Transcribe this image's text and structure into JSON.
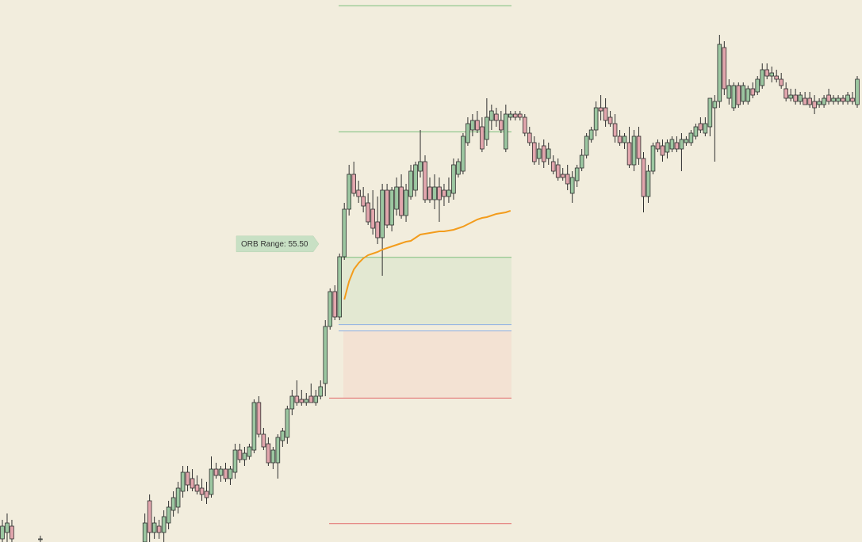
{
  "chart_data": {
    "type": "candlestick",
    "xlim": [
      -0.5,
      181
    ],
    "ylim": [
      20986.25,
      21200
    ],
    "up_color": "#9cc7a1",
    "down_color": "#e2a6ad",
    "outline_color": "#2f2f2f",
    "x": [
      0,
      1,
      2,
      8,
      30,
      31,
      32,
      33,
      34,
      35,
      36,
      37,
      38,
      39,
      40,
      41,
      42,
      43,
      44,
      45,
      46,
      47,
      48,
      49,
      50,
      51,
      52,
      53,
      54,
      55,
      56,
      57,
      58,
      59,
      60,
      61,
      62,
      63,
      64,
      65,
      66,
      67,
      68,
      69,
      70,
      71,
      72,
      73,
      74,
      75,
      76,
      77,
      78,
      79,
      80,
      81,
      82,
      83,
      84,
      85,
      86,
      87,
      88,
      89,
      90,
      91,
      92,
      93,
      94,
      95,
      96,
      97,
      98,
      99,
      100,
      101,
      102,
      103,
      104,
      105,
      106,
      107,
      108,
      109,
      110,
      111,
      112,
      113,
      114,
      115,
      116,
      117,
      118,
      119,
      120,
      121,
      122,
      123,
      124,
      125,
      126,
      127,
      128,
      129,
      130,
      131,
      132,
      133,
      134,
      135,
      136,
      137,
      138,
      139,
      140,
      141,
      142,
      143,
      144,
      145,
      146,
      147,
      148,
      149,
      150,
      151,
      152,
      153,
      154,
      155,
      156,
      157,
      158,
      159,
      160,
      161,
      162,
      163,
      164,
      165,
      166,
      167,
      168,
      169,
      170,
      171,
      172,
      173,
      174,
      175,
      176,
      177,
      178,
      179,
      180
    ],
    "ohlc": [
      [
        20987.5,
        20995,
        20985,
        20992.5
      ],
      [
        20990,
        20997.5,
        20986.25,
        20993.75
      ],
      [
        20992.5,
        20995,
        20985,
        20987.5
      ],
      [
        20987.5,
        20988.75,
        20986.25,
        20987.5
      ],
      [
        20986.25,
        20997.5,
        20985,
        20993.75
      ],
      [
        21002.5,
        21005,
        20986.25,
        20990
      ],
      [
        20990,
        20996.25,
        20987.5,
        20993.75
      ],
      [
        20992.5,
        20995,
        20987.5,
        20990
      ],
      [
        20990,
        20998.75,
        20986.25,
        20996.25
      ],
      [
        20993.75,
        21002.5,
        20991.25,
        21000
      ],
      [
        20998.75,
        21006.25,
        20996.25,
        21003.75
      ],
      [
        21000,
        21010,
        20997.5,
        21007.5
      ],
      [
        21006.25,
        21016.25,
        21003.75,
        21013.75
      ],
      [
        21013.75,
        21016.25,
        21006.25,
        21008.75
      ],
      [
        21011.25,
        21015,
        21006.25,
        21007.5
      ],
      [
        21008.75,
        21012.5,
        21005,
        21006.25
      ],
      [
        21007.5,
        21011.25,
        21002.5,
        21005
      ],
      [
        21006.25,
        21010,
        21001.25,
        21003.75
      ],
      [
        21005,
        21020,
        21003.75,
        21015
      ],
      [
        21015,
        21017.5,
        21011.25,
        21012.5
      ],
      [
        21012.5,
        21016.25,
        21010,
        21015
      ],
      [
        21015,
        21017.5,
        21010,
        21011.25
      ],
      [
        21011.25,
        21016.25,
        21008.75,
        21015
      ],
      [
        21013.75,
        21025,
        21011.25,
        21022.5
      ],
      [
        21022.5,
        21025,
        21017.5,
        21018.75
      ],
      [
        21018.75,
        21023.75,
        21016.25,
        21021.25
      ],
      [
        21020,
        21025,
        21018.75,
        21023.75
      ],
      [
        21022.5,
        21042.5,
        21021.25,
        21041.25
      ],
      [
        21041.25,
        21043.75,
        21027.5,
        21028.75
      ],
      [
        21028.75,
        21031.25,
        21022.5,
        21023.75
      ],
      [
        21025,
        21027.5,
        21016.25,
        21017.5
      ],
      [
        21017.5,
        21023.75,
        21015,
        21022.5
      ],
      [
        21017.5,
        21028.75,
        21011.25,
        21027.5
      ],
      [
        21026.25,
        21031.25,
        21023.75,
        21030
      ],
      [
        21027.5,
        21040,
        21025,
        21038.75
      ],
      [
        21038.75,
        21046.25,
        21036.25,
        21043.75
      ],
      [
        21043.75,
        21050,
        21040,
        21041.25
      ],
      [
        21042.5,
        21046.25,
        21040,
        21041.25
      ],
      [
        21041.25,
        21045,
        21040,
        21042.5
      ],
      [
        21043.75,
        21048.75,
        21041.25,
        21041.25
      ],
      [
        21041.25,
        21046.25,
        21040,
        21043.75
      ],
      [
        21043.75,
        21050,
        21042.5,
        21047.5
      ],
      [
        21048.75,
        21073.75,
        21043.75,
        21071.25
      ],
      [
        21071.25,
        21086.25,
        21070,
        21085
      ],
      [
        21085,
        21087.5,
        21073.75,
        21075
      ],
      [
        21075,
        21100,
        21073.75,
        21098.75
      ],
      [
        21098.75,
        21120,
        21097.5,
        21117.5
      ],
      [
        21117.5,
        21135,
        21115,
        21131.25
      ],
      [
        21131.25,
        21136.25,
        21122.5,
        21123.75
      ],
      [
        21125,
        21128.75,
        21120,
        21122.5
      ],
      [
        21122.5,
        21126.25,
        21116.25,
        21118.75
      ],
      [
        21120,
        21123.75,
        21111.25,
        21112.5
      ],
      [
        21117.5,
        21125,
        21107.5,
        21110
      ],
      [
        21112.5,
        21122.5,
        21103.75,
        21106.25
      ],
      [
        21106.25,
        21127.5,
        21091.25,
        21125
      ],
      [
        21125,
        21127.5,
        21110,
        21111.25
      ],
      [
        21111.25,
        21126.25,
        21108.75,
        21125
      ],
      [
        21117.5,
        21130,
        21115,
        21126.25
      ],
      [
        21126.25,
        21131.25,
        21113.75,
        21115
      ],
      [
        21115,
        21127.5,
        21112.5,
        21125
      ],
      [
        21122.5,
        21135,
        21121.25,
        21132.5
      ],
      [
        21125,
        21136.25,
        21122.5,
        21135
      ],
      [
        21132.5,
        21148.75,
        21130,
        21136.25
      ],
      [
        21136.25,
        21138.75,
        21120,
        21121.25
      ],
      [
        21126.25,
        21130,
        21120,
        21121.25
      ],
      [
        21121.25,
        21131.25,
        21117.5,
        21126.25
      ],
      [
        21126.25,
        21130,
        21112.5,
        21121.25
      ],
      [
        21125,
        21127.5,
        21118.75,
        21122.5
      ],
      [
        21122.5,
        21130,
        21120,
        21125
      ],
      [
        21123.75,
        21137.5,
        21121.25,
        21135
      ],
      [
        21131.25,
        21137.5,
        21130,
        21136.25
      ],
      [
        21132.5,
        21147.5,
        21131.25,
        21146.25
      ],
      [
        21143.75,
        21153.75,
        21142.5,
        21151.25
      ],
      [
        21148.75,
        21155,
        21146.25,
        21152.5
      ],
      [
        21152.5,
        21156.25,
        21147.5,
        21148.75
      ],
      [
        21150,
        21153.75,
        21140,
        21141.25
      ],
      [
        21145,
        21161.25,
        21142.5,
        21153.75
      ],
      [
        21152.5,
        21158.75,
        21148.75,
        21156.25
      ],
      [
        21155,
        21157.5,
        21150,
        21152.5
      ],
      [
        21152.5,
        21156.25,
        21147.5,
        21148.75
      ],
      [
        21141.25,
        21158.75,
        21140,
        21155
      ],
      [
        21153.75,
        21156.25,
        21152.5,
        21155
      ],
      [
        21155,
        21156.25,
        21152.5,
        21153.75
      ],
      [
        21155,
        21156.25,
        21152.5,
        21153.75
      ],
      [
        21153.75,
        21155,
        21146.25,
        21147.5
      ],
      [
        21147.5,
        21150,
        21142.5,
        21143.75
      ],
      [
        21143.75,
        21146.25,
        21135,
        21136.25
      ],
      [
        21137.5,
        21143.75,
        21135,
        21141.25
      ],
      [
        21142.5,
        21145,
        21133.75,
        21136.25
      ],
      [
        21137.5,
        21143.75,
        21135,
        21141.25
      ],
      [
        21136.25,
        21138.75,
        21131.25,
        21132.5
      ],
      [
        21135,
        21137.5,
        21128.75,
        21130
      ],
      [
        21131.25,
        21133.75,
        21128.75,
        21130
      ],
      [
        21131.25,
        21135,
        21125,
        21127.5
      ],
      [
        21123.75,
        21132.5,
        21120,
        21130
      ],
      [
        21128.75,
        21135,
        21126.25,
        21133.75
      ],
      [
        21133.75,
        21141.25,
        21132.5,
        21138.75
      ],
      [
        21138.75,
        21147.5,
        21137.5,
        21146.25
      ],
      [
        21145,
        21150,
        21143.75,
        21148.75
      ],
      [
        21148.75,
        21160,
        21146.25,
        21157.5
      ],
      [
        21157.5,
        21162.5,
        21152.5,
        21156.25
      ],
      [
        21157.5,
        21161.25,
        21150,
        21152.5
      ],
      [
        21153.75,
        21156.25,
        21150,
        21151.25
      ],
      [
        21151.25,
        21155,
        21143.75,
        21146.25
      ],
      [
        21146.25,
        21148.75,
        21142.5,
        21143.75
      ],
      [
        21143.75,
        21147.5,
        21141.25,
        21146.25
      ],
      [
        21143.75,
        21150,
        21133.75,
        21135
      ],
      [
        21135,
        21148.75,
        21132.5,
        21146.25
      ],
      [
        21146.25,
        21150,
        21135,
        21137.5
      ],
      [
        21137.5,
        21140,
        21116.25,
        21122.5
      ],
      [
        21122.5,
        21135,
        21120,
        21132.5
      ],
      [
        21132.5,
        21143.75,
        21131.25,
        21142.5
      ],
      [
        21143.75,
        21145,
        21140,
        21141.25
      ],
      [
        21142.5,
        21145,
        21136.25,
        21138.75
      ],
      [
        21140,
        21145,
        21137.5,
        21143.75
      ],
      [
        21141.25,
        21146.25,
        21140,
        21145
      ],
      [
        21143.75,
        21146.25,
        21140,
        21141.25
      ],
      [
        21141.25,
        21147.5,
        21132.5,
        21145
      ],
      [
        21143.75,
        21146.25,
        21142.5,
        21145
      ],
      [
        21143.75,
        21148.75,
        21142.5,
        21147.5
      ],
      [
        21146.25,
        21151.25,
        21145,
        21150
      ],
      [
        21151.25,
        21153.75,
        21147.5,
        21148.75
      ],
      [
        21147.5,
        21153.75,
        21146.25,
        21151.25
      ],
      [
        21150,
        21161.25,
        21146.25,
        21161.25
      ],
      [
        21157.5,
        21162.5,
        21136.25,
        21160
      ],
      [
        21160,
        21186.25,
        21157.5,
        21182.5
      ],
      [
        21181.25,
        21183.75,
        21162.5,
        21165
      ],
      [
        21161.25,
        21168.75,
        21158.75,
        21166.25
      ],
      [
        21157.5,
        21167.5,
        21156.25,
        21166.25
      ],
      [
        21166.25,
        21167.5,
        21157.5,
        21158.75
      ],
      [
        21160,
        21167.5,
        21158.75,
        21166.25
      ],
      [
        21160,
        21166.25,
        21158.75,
        21165
      ],
      [
        21165,
        21167.5,
        21161.25,
        21162.5
      ],
      [
        21163.75,
        21170,
        21162.5,
        21168.75
      ],
      [
        21166.25,
        21175,
        21165,
        21172.5
      ],
      [
        21172.5,
        21175,
        21168.75,
        21170
      ],
      [
        21170,
        21173.75,
        21167.5,
        21171.25
      ],
      [
        21170,
        21172.5,
        21167.5,
        21168.75
      ],
      [
        21168.75,
        21171.25,
        21165,
        21166.25
      ],
      [
        21165,
        21167.5,
        21160,
        21161.25
      ],
      [
        21161.25,
        21165,
        21160,
        21162.5
      ],
      [
        21162.5,
        21165,
        21158.75,
        21160
      ],
      [
        21160,
        21163.75,
        21158.75,
        21162.5
      ],
      [
        21161.25,
        21163.75,
        21158.75,
        21158.75
      ],
      [
        21161.25,
        21163.75,
        21157.5,
        21158.75
      ],
      [
        21160,
        21162.5,
        21155,
        21157.5
      ],
      [
        21158.75,
        21161.25,
        21157.5,
        21160
      ],
      [
        21158.75,
        21162.5,
        21157.5,
        21161.25
      ],
      [
        21162.5,
        21165,
        21158.75,
        21160
      ],
      [
        21160,
        21162.5,
        21158.75,
        21161.25
      ],
      [
        21160,
        21162.5,
        21158.75,
        21161.25
      ],
      [
        21161.25,
        21162.5,
        21158.75,
        21160
      ],
      [
        21160,
        21163.75,
        21158.75,
        21162.5
      ],
      [
        21161.25,
        21163.75,
        21158.75,
        21160
      ],
      [
        21158.75,
        21170,
        21157.5,
        21168.75
      ]
    ],
    "zones": [
      {
        "x": [
          70.8,
          107.2
        ],
        "range": [
          21072,
          21098.5
        ],
        "color": "#e3e8d2"
      },
      {
        "x": [
          71.8,
          107.2
        ],
        "range": [
          21043,
          21069.5
        ],
        "color": "#f3e2d3"
      }
    ],
    "levels": [
      {
        "value": 21197.75,
        "x": [
          70.8,
          107.2
        ],
        "color": "#7cbf7c"
      },
      {
        "value": 21148,
        "x": [
          70.8,
          107.2
        ],
        "color": "#7cbf7c"
      },
      {
        "value": 21098.5,
        "x": [
          70.8,
          107.2
        ],
        "color": "#7cbf7c"
      },
      {
        "value": 21072,
        "x": [
          70.8,
          107.2
        ],
        "color": "#8fb1e3"
      },
      {
        "value": 21069.5,
        "x": [
          70.8,
          107.2
        ],
        "color": "#8fb1e3"
      },
      {
        "value": 21043,
        "x": [
          68.8,
          107.2
        ],
        "color": "#e26a6a"
      },
      {
        "value": 20993.5,
        "x": [
          68.8,
          107.2
        ],
        "color": "#e26a6a"
      }
    ],
    "vwap": {
      "color": "#f39c1c",
      "x": [
        72,
        73,
        74,
        75,
        76,
        77,
        78,
        79,
        80,
        81,
        82,
        83,
        84,
        85,
        86,
        87,
        88,
        89,
        90,
        91,
        92,
        93,
        94,
        95,
        96,
        97,
        98,
        99,
        100,
        101,
        102,
        103,
        104,
        105,
        106,
        107
      ],
      "values": [
        21081.88,
        21089.06,
        21093.75,
        21096.25,
        21098.13,
        21099.38,
        21100,
        21100.63,
        21101.56,
        21102.19,
        21102.81,
        21103.44,
        21104.06,
        21104.69,
        21105,
        21106.25,
        21107.5,
        21107.81,
        21108.13,
        21108.44,
        21108.75,
        21108.75,
        21109.06,
        21109.38,
        21110,
        21110.63,
        21111.56,
        21112.5,
        21113.44,
        21114.06,
        21114.38,
        21115,
        21115.63,
        21115.94,
        21116.25,
        21116.88
      ]
    },
    "orb_label": "ORB Range: 55.50",
    "orb_label_color": "#c8e0c4"
  }
}
